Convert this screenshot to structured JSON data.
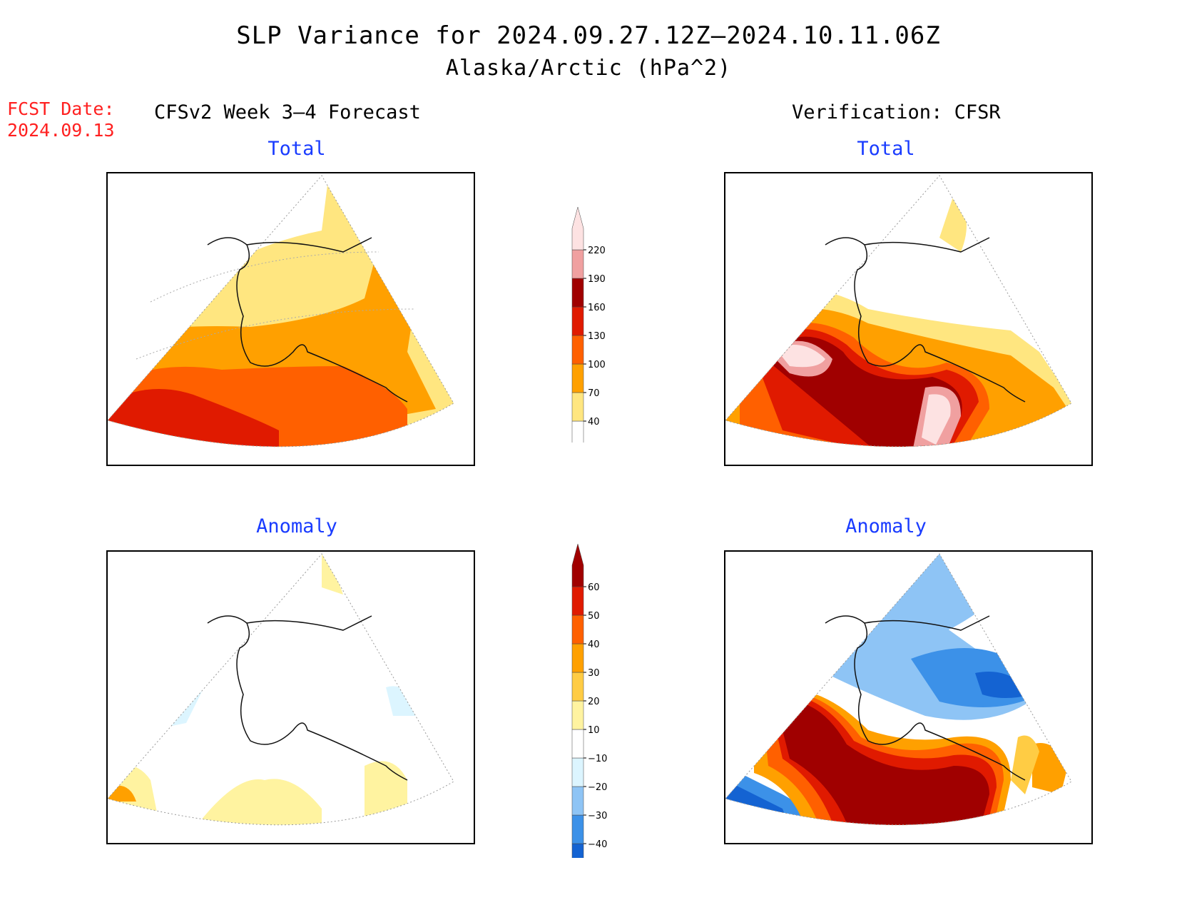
{
  "header": {
    "title_line1": "SLP Variance for 2024.09.27.12Z–2024.10.11.06Z",
    "title_line2": "Alaska/Arctic (hPa^2)",
    "fcst_label": "FCST Date:",
    "fcst_date": "2024.09.13",
    "left_heading": "CFSv2 Week 3–4 Forecast",
    "right_heading": "Verification: CFSR"
  },
  "panels": {
    "left_total_title": "Total",
    "right_total_title": "Total",
    "left_anomaly_title": "Anomaly",
    "right_anomaly_title": "Anomaly"
  },
  "colorbars": {
    "total": {
      "levels": [
        "40",
        "70",
        "100",
        "130",
        "160",
        "190",
        "220"
      ],
      "colors": [
        "#ffe680",
        "#ffa000",
        "#ff6000",
        "#e01a00",
        "#a00000",
        "#f0a0a0",
        "#fde2e2"
      ]
    },
    "anomaly": {
      "levels": [
        "−40",
        "−30",
        "−20",
        "−10",
        "10",
        "20",
        "30",
        "40",
        "50",
        "60"
      ],
      "colors": [
        "#1463d2",
        "#3c91e8",
        "#8ec4f5",
        "#dcf5ff",
        "#ffffff",
        "#fff3a0",
        "#ffcc44",
        "#ffa000",
        "#ff6000",
        "#e01a00",
        "#a00000"
      ]
    }
  }
}
